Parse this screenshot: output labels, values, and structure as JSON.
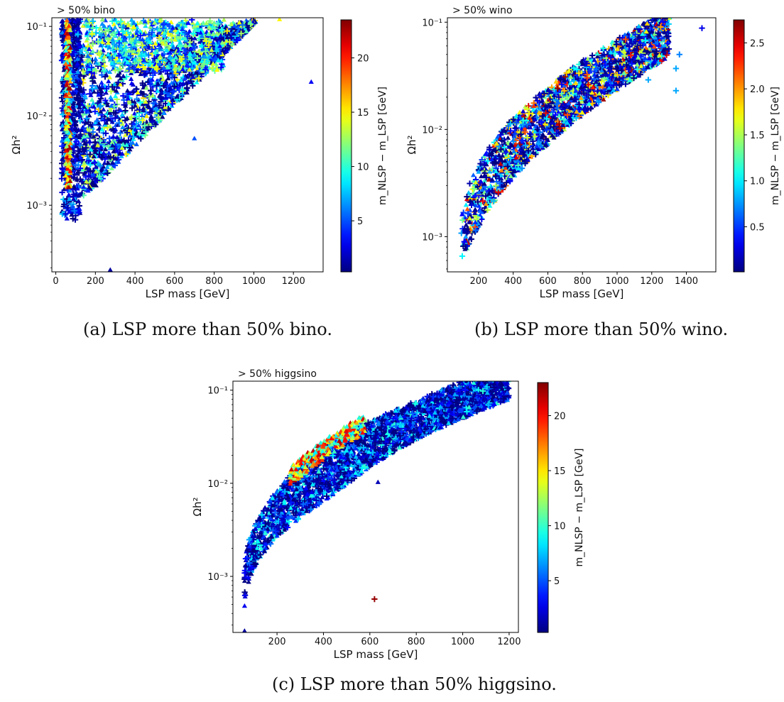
{
  "chart_data": [
    {
      "type": "scatter",
      "title": "> 50% bino",
      "caption": "(a) LSP more than 50% bino.",
      "xlabel": "LSP mass [GeV]",
      "ylabel": "Ωh²",
      "xlim": [
        -20,
        1350
      ],
      "ylim": [
        0.00018,
        0.125
      ],
      "yscale": "log",
      "xticks": [
        0,
        200,
        400,
        600,
        800,
        1000,
        1200
      ],
      "yticks": [
        {
          "v": 0.001,
          "label": "10⁻³"
        },
        {
          "v": 0.01,
          "label": "10⁻²"
        },
        {
          "v": 0.1,
          "label": "10⁻¹"
        }
      ],
      "colorbar": {
        "label": "m_NLSP − m_LSP [GeV]",
        "min": 0.3,
        "max": 23.5,
        "ticks": [
          5,
          10,
          15,
          20
        ]
      },
      "markers": [
        "triangle",
        "plus"
      ],
      "highlights": [
        {
          "x": 1290,
          "y": 0.024,
          "c": 3,
          "m": "t"
        },
        {
          "x": 700,
          "y": 0.0056,
          "c": 5,
          "m": "t"
        },
        {
          "x": 1130,
          "y": 0.12,
          "c": 15,
          "m": "t"
        },
        {
          "x": 275,
          "y": 0.00019,
          "c": 1,
          "m": "t"
        }
      ]
    },
    {
      "type": "scatter",
      "title": "> 50% wino",
      "caption": "(b) LSP more than 50% wino.",
      "xlabel": "LSP mass [GeV]",
      "ylabel": "Ωh²",
      "xlim": [
        20,
        1570
      ],
      "ylim": [
        0.00047,
        0.11
      ],
      "yscale": "log",
      "xticks": [
        200,
        400,
        600,
        800,
        1000,
        1200,
        1400
      ],
      "yticks": [
        {
          "v": 0.001,
          "label": "10⁻³"
        },
        {
          "v": 0.01,
          "label": "10⁻²"
        },
        {
          "v": 0.1,
          "label": "10⁻¹"
        }
      ],
      "colorbar": {
        "label": "m_NLSP − m_LSP [GeV]",
        "min": 0.01,
        "max": 2.75,
        "ticks": [
          0.5,
          1.0,
          1.5,
          2.0,
          2.5
        ]
      },
      "markers": [
        "triangle",
        "plus"
      ],
      "highlights": [
        {
          "x": 1490,
          "y": 0.088,
          "c": 0.3,
          "m": "p"
        },
        {
          "x": 1340,
          "y": 0.023,
          "c": 0.8,
          "m": "p"
        },
        {
          "x": 1340,
          "y": 0.037,
          "c": 0.8,
          "m": "p"
        },
        {
          "x": 1180,
          "y": 0.029,
          "c": 0.8,
          "m": "p"
        },
        {
          "x": 1360,
          "y": 0.05,
          "c": 0.7,
          "m": "p"
        }
      ]
    },
    {
      "type": "scatter",
      "title": "> 50% higgsino",
      "caption": "(c) LSP more than 50% higgsino.",
      "xlabel": "LSP mass [GeV]",
      "ylabel": "Ωh²",
      "xlim": [
        10,
        1240
      ],
      "ylim": [
        0.00025,
        0.125
      ],
      "yscale": "log",
      "xticks": [
        200,
        400,
        600,
        800,
        1000,
        1200
      ],
      "yticks": [
        {
          "v": 0.001,
          "label": "10⁻³"
        },
        {
          "v": 0.01,
          "label": "10⁻²"
        },
        {
          "v": 0.1,
          "label": "10⁻¹"
        }
      ],
      "colorbar": {
        "label": "m_NLSP − m_LSP [GeV]",
        "min": 0.3,
        "max": 23,
        "ticks": [
          5,
          10,
          15,
          20
        ]
      },
      "markers": [
        "triangle",
        "plus"
      ],
      "highlights": [
        {
          "x": 620,
          "y": 0.00057,
          "c": 22.5,
          "m": "p"
        },
        {
          "x": 635,
          "y": 0.0103,
          "c": 1.5,
          "m": "t"
        },
        {
          "x": 60,
          "y": 0.00026,
          "c": 1,
          "m": "t"
        }
      ]
    }
  ]
}
